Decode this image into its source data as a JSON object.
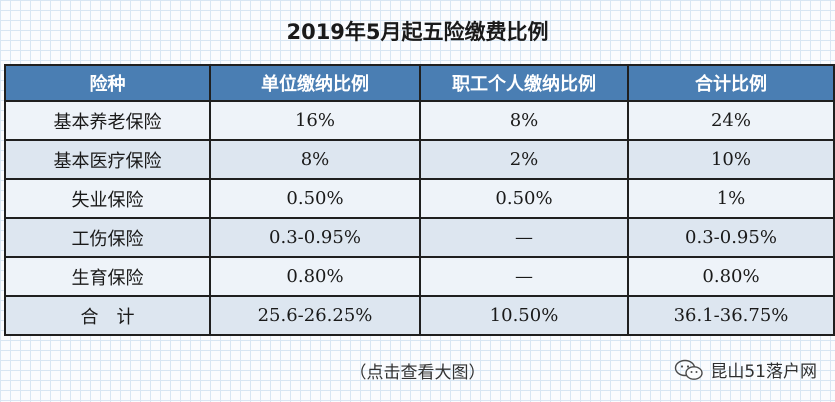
{
  "title": "2019年5月起五险缴费比例",
  "table": {
    "headers": [
      "险种",
      "单位缴纳比例",
      "职工个人缴纳比例",
      "合计比例"
    ],
    "rows": [
      [
        "基本养老保险",
        "16%",
        "8%",
        "24%"
      ],
      [
        "基本医疗保险",
        "8%",
        "2%",
        "10%"
      ],
      [
        "失业保险",
        "0.50%",
        "0.50%",
        "1%"
      ],
      [
        "工伤保险",
        "0.3-0.95%",
        "—",
        "0.3-0.95%"
      ],
      [
        "生育保险",
        "0.80%",
        "—",
        "0.80%"
      ],
      [
        "合　计",
        "25.6-26.25%",
        "10.50%",
        "36.1-36.75%"
      ]
    ]
  },
  "caption": "（点击查看大图）",
  "watermark": {
    "icon": "wechat-icon",
    "text": "昆山51落户网"
  },
  "colors": {
    "header_bg": "#4a7eb3",
    "row_bg": "#eef3f9",
    "row_alt_bg": "#dde6f0"
  }
}
